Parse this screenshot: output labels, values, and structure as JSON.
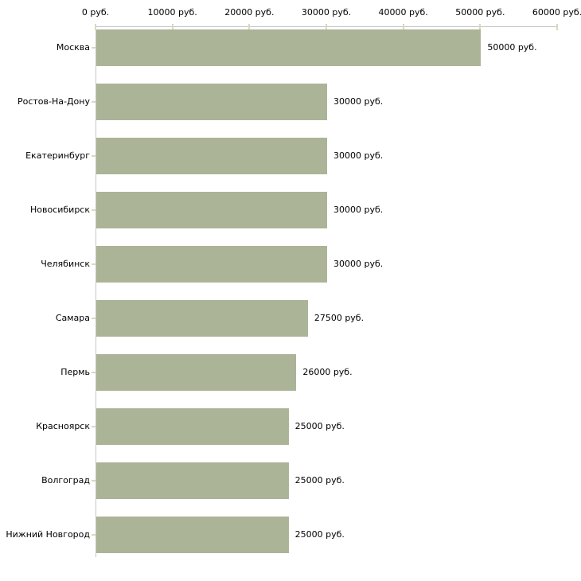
{
  "chart_data": {
    "type": "bar",
    "orientation": "horizontal",
    "title": "",
    "xlabel": "",
    "ylabel": "",
    "categories": [
      "Москва",
      "Ростов-На-Дону",
      "Екатеринбург",
      "Новосибирск",
      "Челябинск",
      "Самара",
      "Пермь",
      "Красноярск",
      "Волгоград",
      "Нижний Новгород"
    ],
    "values": [
      50000,
      30000,
      30000,
      30000,
      30000,
      27500,
      26000,
      25000,
      25000,
      25000
    ],
    "value_labels": [
      "50000 руб.",
      "30000 руб.",
      "30000 руб.",
      "30000 руб.",
      "30000 руб.",
      "27500 руб.",
      "26000 руб.",
      "25000 руб.",
      "25000 руб.",
      "25000 руб."
    ],
    "xlim": [
      0,
      60000
    ],
    "x_ticks": [
      0,
      10000,
      20000,
      30000,
      40000,
      50000,
      60000
    ],
    "x_tick_labels": [
      "0 руб.",
      "10000 руб.",
      "20000 руб.",
      "30000 руб.",
      "40000 руб.",
      "50000 руб.",
      "60000 руб."
    ],
    "x_axis_position": "top",
    "grid": false,
    "legend": false,
    "colors": {
      "bar_fill": "#abb497",
      "axis_line": "#c6c6c6",
      "tick_mark": "#d9d9bd",
      "text": "#000000"
    }
  }
}
